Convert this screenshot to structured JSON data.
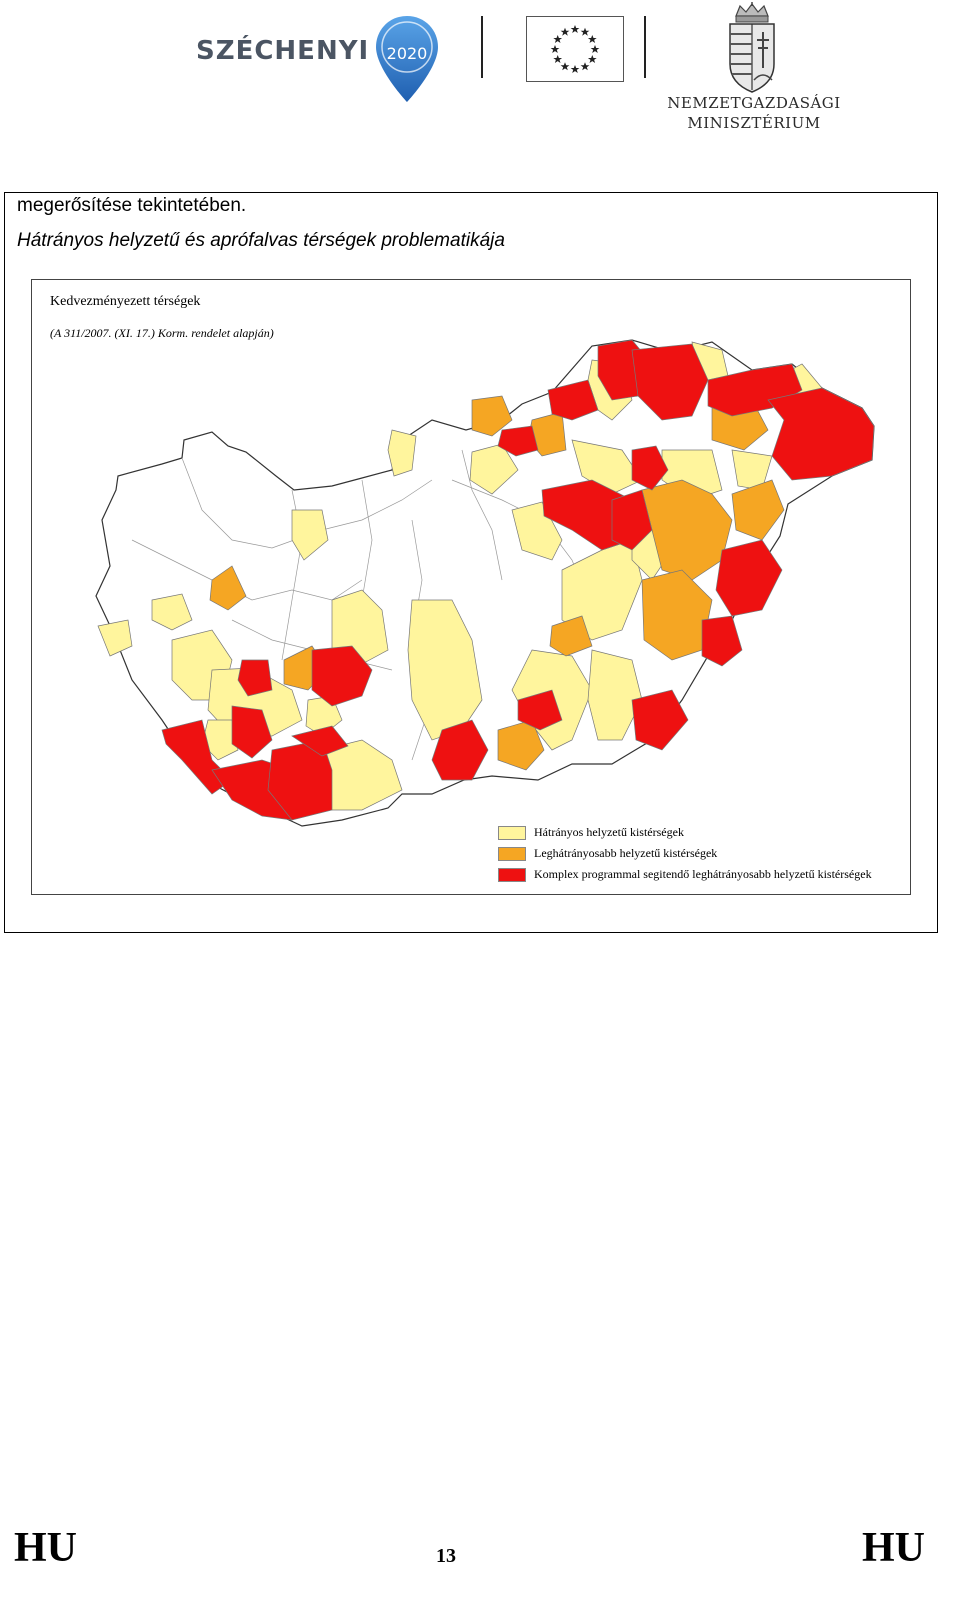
{
  "header": {
    "szechenyi_logo_text": "SZÉCHENYI",
    "szechenyi_logo_year": "2020",
    "ministry_line1": "NEMZETGAZDASÁGI",
    "ministry_line2": "MINISZTÉRIUM",
    "icons": [
      "szechenyi-pin-icon",
      "eu-flag-icon",
      "hungarian-coat-of-arms-icon"
    ]
  },
  "content": {
    "line1": "megerősítése tekintetében.",
    "line2": "Hátrányos helyzetű és aprófalvas térségek problematikája"
  },
  "map": {
    "title": "Kedvezményezett térségek",
    "subtitle": "(A 311/2007. (XI. 17.) Korm. rendelet alapján)",
    "legend": [
      {
        "label": "Hátrányos helyzetű kistérségek",
        "color": "#fff59d"
      },
      {
        "label": "Leghátrányosabb helyzetű kistérségek",
        "color": "#f5a623"
      },
      {
        "label": "Komplex programmal segitendő leghátrányosabb helyzetű kistérségek",
        "color": "#ee1111"
      }
    ]
  },
  "footer": {
    "left": "HU",
    "page_number": "13",
    "right": "HU"
  }
}
